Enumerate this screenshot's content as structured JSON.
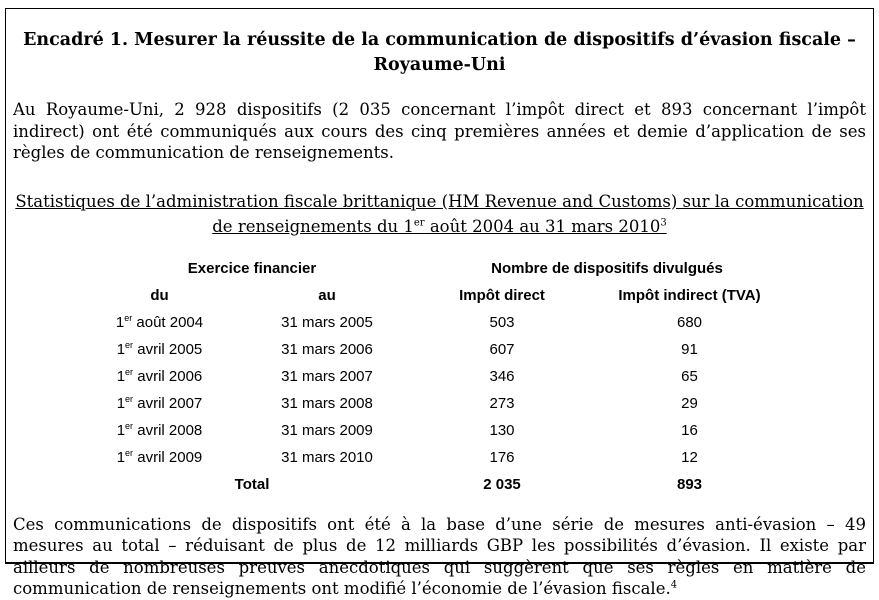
{
  "document": {
    "title": {
      "line1": "Encadré 1. Mesurer la réussite de la communication de dispositifs d’évasion fiscale –",
      "line2": "Royaume-Uni"
    },
    "intro_paragraph": "Au Royaume-Uni, 2 928 dispositifs (2 035 concernant l’impôt direct et 893 concernant l’impôt indirect) ont été communiqués aux cours des cinq premières années et demie d’application de ses règles de communication de renseignements.",
    "table_caption": {
      "line1": "Statistiques de l’administration fiscale brittanique (HM Revenue and Customs) sur la communication",
      "line2_part1": "de renseignements du 1",
      "line2_ordinal": "er",
      "line2_part2": " août 2004 au 31 mars 2010",
      "footnote_ref": "3"
    },
    "closing_paragraph": {
      "text": "Ces communications de dispositifs ont été à la base d’une série de mesures anti-évasion – 49 mesures au total – réduisant de plus de 12 milliards GBP les possibilités d’évasion. Il existe par ailleurs de nombreuses preuves anecdotiques qui suggèrent que ses règles en matière de communication de renseignements ont modifié l’économie de l’évasion fiscale.",
      "footnote_ref": "4"
    }
  },
  "table": {
    "group_headers": {
      "exercice": "Exercice financier",
      "dispositifs": "Nombre de dispositifs divulgués"
    },
    "column_headers": {
      "du": "du",
      "au": "au",
      "direct": "Impôt direct",
      "indirect": "Impôt indirect (TVA)"
    },
    "ordinal": "er",
    "rows": [
      {
        "du_num": "1",
        "du_sup": "er",
        "du_rest": " août 2004",
        "au": "31 mars 2005",
        "direct": "503",
        "indirect": "680"
      },
      {
        "du_num": "1",
        "du_sup": "er",
        "du_rest": " avril 2005",
        "au": "31 mars 2006",
        "direct": "607",
        "indirect": "91"
      },
      {
        "du_num": "1",
        "du_sup": "er",
        "du_rest": " avril 2006",
        "au": "31 mars 2007",
        "direct": "346",
        "indirect": "65"
      },
      {
        "du_num": "1",
        "du_sup": "er",
        "du_rest": " avril 2007",
        "au": "31 mars 2008",
        "direct": "273",
        "indirect": "29"
      },
      {
        "du_num": "1",
        "du_sup": "er",
        "du_rest": " avril 2008",
        "au": "31 mars 2009",
        "direct": "130",
        "indirect": "16"
      },
      {
        "du_num": "1",
        "du_sup": "er",
        "du_rest": " avril 2009",
        "au": "31 mars 2010",
        "direct": "176",
        "indirect": "12"
      }
    ],
    "total_row": {
      "label": "Total",
      "direct": "2 035",
      "indirect": "893"
    }
  }
}
